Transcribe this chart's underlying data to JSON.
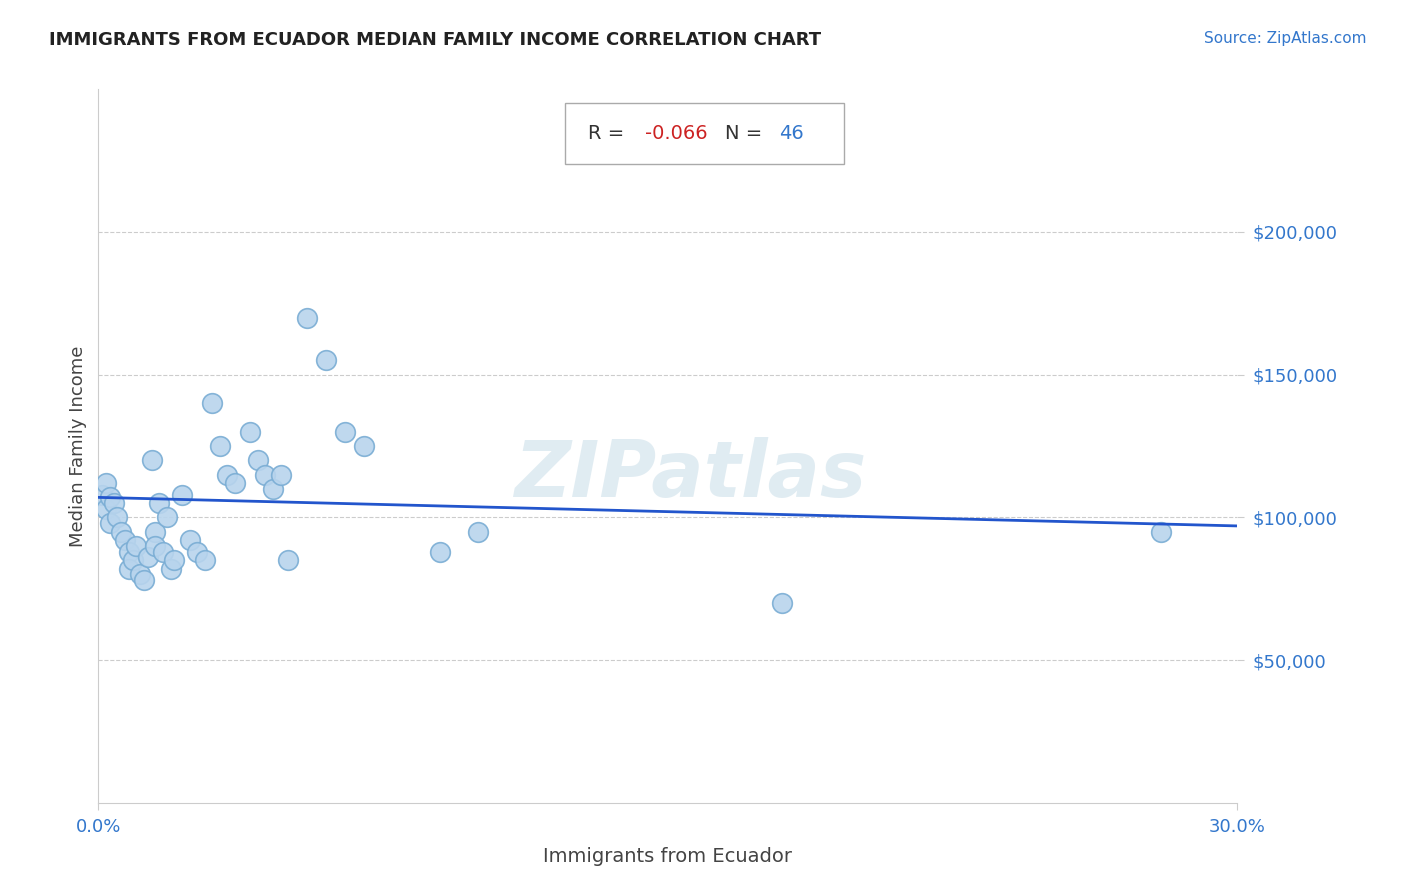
{
  "title": "IMMIGRANTS FROM ECUADOR MEDIAN FAMILY INCOME CORRELATION CHART",
  "source": "Source: ZipAtlas.com",
  "xlabel": "Immigrants from Ecuador",
  "ylabel": "Median Family Income",
  "R": -0.066,
  "N": 46,
  "watermark": "ZIPatlas",
  "xlim": [
    0.0,
    0.3
  ],
  "ylim": [
    0,
    250000
  ],
  "ytick_vals": [
    50000,
    100000,
    150000,
    200000
  ],
  "ytick_labels": [
    "$50,000",
    "$100,000",
    "$150,000",
    "$200,000"
  ],
  "xtick_vals": [
    0.0,
    0.3
  ],
  "xtick_labels": [
    "0.0%",
    "30.0%"
  ],
  "scatter_color": "#b8d4ed",
  "scatter_edgecolor": "#7aadd4",
  "line_color": "#2255cc",
  "title_color": "#222222",
  "axis_label_color": "#444444",
  "tick_label_color": "#3377cc",
  "grid_color": "#cccccc",
  "background_color": "#ffffff",
  "R_color": "#cc2222",
  "N_color": "#3377cc",
  "points_x": [
    0.001,
    0.002,
    0.002,
    0.003,
    0.003,
    0.004,
    0.005,
    0.006,
    0.007,
    0.008,
    0.008,
    0.009,
    0.01,
    0.011,
    0.012,
    0.013,
    0.014,
    0.015,
    0.015,
    0.016,
    0.017,
    0.018,
    0.019,
    0.02,
    0.022,
    0.024,
    0.026,
    0.028,
    0.03,
    0.032,
    0.034,
    0.036,
    0.04,
    0.042,
    0.044,
    0.046,
    0.048,
    0.05,
    0.055,
    0.06,
    0.065,
    0.07,
    0.09,
    0.1,
    0.18,
    0.28
  ],
  "points_y": [
    108000,
    112000,
    103000,
    107000,
    98000,
    105000,
    100000,
    95000,
    92000,
    88000,
    82000,
    85000,
    90000,
    80000,
    78000,
    86000,
    120000,
    95000,
    90000,
    105000,
    88000,
    100000,
    82000,
    85000,
    108000,
    92000,
    88000,
    85000,
    140000,
    125000,
    115000,
    112000,
    130000,
    120000,
    115000,
    110000,
    115000,
    85000,
    170000,
    155000,
    130000,
    125000,
    88000,
    95000,
    70000,
    95000
  ],
  "line_x": [
    0.0,
    0.3
  ],
  "line_y": [
    107000,
    97000
  ]
}
